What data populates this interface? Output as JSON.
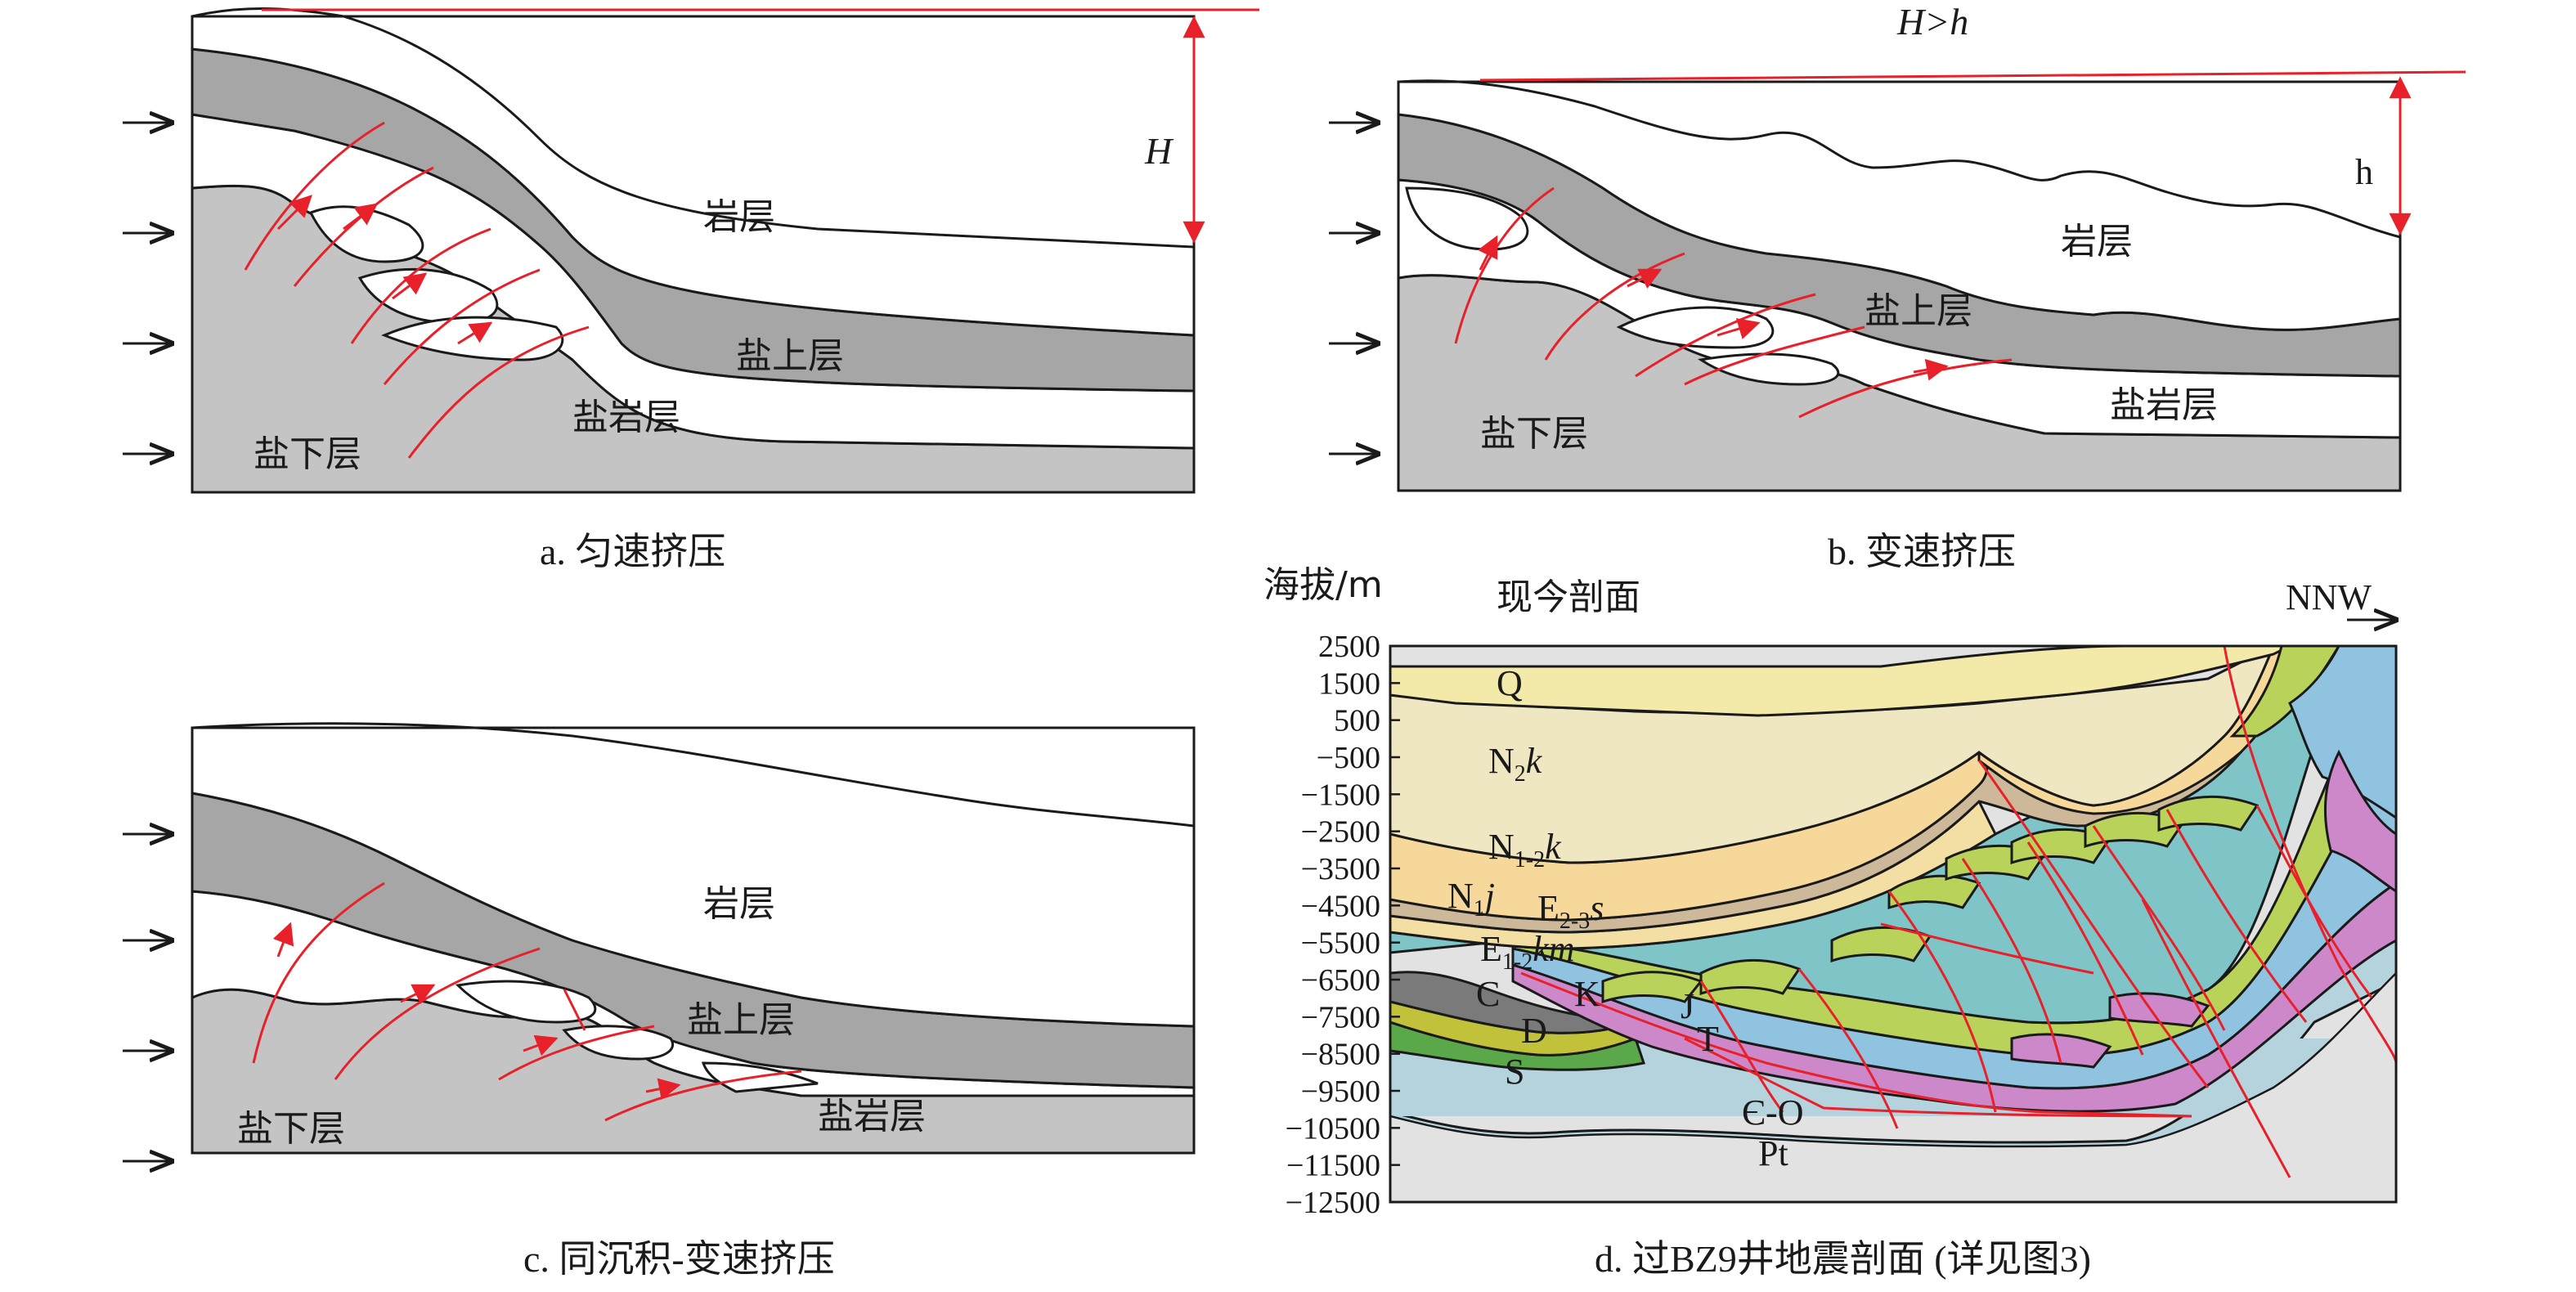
{
  "colors": {
    "overlying": "#ffffff",
    "supra_salt": "#a6a6a6",
    "sub_salt": "#c4c4c4",
    "salt": "#ffffff",
    "fault": "#e8202a",
    "Q": "#f3e9a8",
    "N2k": "#efe6c2",
    "N1-2k": "#f6d99a",
    "N1j": "#cdb99a",
    "E2-3s": "#f3dfa3",
    "E1-2km": "#7fc4c6",
    "K": "#b9d25a",
    "J": "#8fc3e0",
    "T": "#cc88c9",
    "C": "#7a7a7a",
    "D": "#c2c23a",
    "S": "#5aa84a",
    "Cm-O": "#b5d3dd",
    "Pt": "#e2e2e2"
  },
  "panels": {
    "a": {
      "caption": "a. 匀速挤压",
      "label_rock": "岩层",
      "label_supra": "盐上层",
      "label_salt": "盐岩层",
      "label_sub": "盐下层",
      "dimension": "H"
    },
    "b": {
      "caption": "b. 变速挤压",
      "label_rock": "岩层",
      "label_supra": "盐上层",
      "label_salt": "盐岩层",
      "label_sub": "盐下层",
      "dimension": "h",
      "comparison": "H>h"
    },
    "c": {
      "caption": "c. 同沉积-变速挤压",
      "label_rock": "岩层",
      "label_supra": "盐上层",
      "label_salt": "盐岩层",
      "label_sub": "盐下层"
    },
    "d": {
      "caption": "d. 过BZ9井地震剖面 (详见图3)",
      "title": "现今剖面",
      "ylabel": "海拔/m",
      "direction": "NNW",
      "yticks": [
        "2500",
        "1500",
        "500",
        "−500",
        "−1500",
        "−2500",
        "−3500",
        "−4500",
        "−5500",
        "−6500",
        "−7500",
        "−8500",
        "−9500",
        "−10500",
        "−11500",
        "−12500"
      ],
      "strata": {
        "Q": "Q",
        "N2k_base": "N",
        "N2k_sub": "2",
        "N2k_tail": "k",
        "N12k_base": "N",
        "N12k_sub": "1-2",
        "N12k_tail": "k",
        "N1j_base": "N",
        "N1j_sub": "1",
        "N1j_tail": "j",
        "E23s_base": "E",
        "E23s_sub": "2-3",
        "E23s_tail": "s",
        "E12km_base": "E",
        "E12km_sub": "1-2",
        "E12km_tail": "km",
        "C": "C",
        "K": "K",
        "J": "J",
        "T": "T",
        "D": "D",
        "S": "S",
        "CmO": "Є-O",
        "Pt": "Pt"
      }
    }
  }
}
